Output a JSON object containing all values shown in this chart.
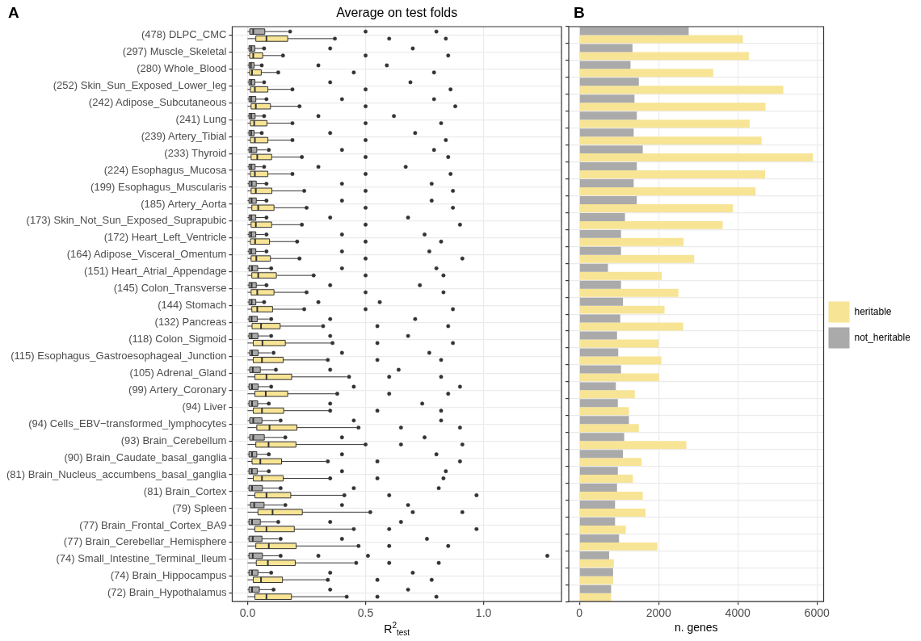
{
  "chart_data": [
    {
      "type": "box",
      "orientation": "horizontal",
      "title": "Average on test folds",
      "xlabel": "R$^{2}$$_{test}$",
      "annotations": [
        "A"
      ],
      "grid": true,
      "xlim": [
        -0.065,
        1.33
      ],
      "xticks": [
        {
          "value": 0,
          "label": "0.0"
        },
        {
          "value": 0.5,
          "label": "0.5"
        },
        {
          "value": 1,
          "label": "1.0"
        }
      ],
      "categories": [
        "(478) DLPC_CMC",
        "(297) Muscle_Skeletal",
        "(280) Whole_Blood",
        "(252) Skin_Sun_Exposed_Lower_leg",
        "(242) Adipose_Subcutaneous",
        "(241) Lung",
        "(239) Artery_Tibial",
        "(233) Thyroid",
        "(224) Esophagus_Mucosa",
        "(199) Esophagus_Muscularis",
        "(185) Artery_Aorta",
        "(173) Skin_Not_Sun_Exposed_Suprapubic",
        "(172) Heart_Left_Ventricle",
        "(164) Adipose_Visceral_Omentum",
        "(151) Heart_Atrial_Appendage",
        "(145) Colon_Transverse",
        "(144) Stomach",
        "(132) Pancreas",
        "(118) Colon_Sigmoid",
        "(115) Esophagus_Gastroesophageal_Junction",
        "(105) Adrenal_Gland",
        "(99) Artery_Coronary",
        "(94) Liver",
        "(94) Cells_EBV−transformed_lymphocytes",
        "(93) Brain_Cerebellum",
        "(90) Brain_Caudate_basal_ganglia",
        "(81) Brain_Nucleus_accumbens_basal_ganglia",
        "(81) Brain_Cortex",
        "(79) Spleen",
        "(77) Brain_Frontal_Cortex_BA9",
        "(77) Brain_Cerebellar_Hemisphere",
        "(74) Small_Intestine_Terminal_Ileum",
        "(74) Brain_Hippocampus",
        "(72) Brain_Hypothalamus"
      ],
      "series": [
        {
          "color": "#f7e495",
          "boxes": [
            {
              "low": 0,
              "q1": 0.035,
              "median": 0.08,
              "q3": 0.17,
              "high": 0.367,
              "outliers": [
                0.37,
                0.6,
                0.84
              ]
            },
            {
              "low": 0,
              "q1": 0.009,
              "median": 0.024,
              "q3": 0.064,
              "high": 0.142,
              "outliers": [
                0.15,
                0.5,
                0.85
              ]
            },
            {
              "low": 0,
              "q1": 0.009,
              "median": 0.019,
              "q3": 0.058,
              "high": 0.125,
              "outliers": [
                0.13,
                0.45,
                0.79
              ]
            },
            {
              "low": 0,
              "q1": 0.012,
              "median": 0.031,
              "q3": 0.086,
              "high": 0.189,
              "outliers": [
                0.19,
                0.5,
                0.86
              ]
            },
            {
              "low": 0,
              "q1": 0.015,
              "median": 0.035,
              "q3": 0.097,
              "high": 0.213,
              "outliers": [
                0.22,
                0.5,
                0.88
              ]
            },
            {
              "low": 0,
              "q1": 0.012,
              "median": 0.028,
              "q3": 0.082,
              "high": 0.183,
              "outliers": [
                0.19,
                0.5,
                0.82
              ]
            },
            {
              "low": 0,
              "q1": 0.012,
              "median": 0.031,
              "q3": 0.086,
              "high": 0.189,
              "outliers": [
                0.19,
                0.5,
                0.84
              ]
            },
            {
              "low": 0,
              "q1": 0.015,
              "median": 0.041,
              "q3": 0.102,
              "high": 0.226,
              "outliers": [
                0.23,
                0.5,
                0.85
              ]
            },
            {
              "low": 0,
              "q1": 0.012,
              "median": 0.031,
              "q3": 0.086,
              "high": 0.187,
              "outliers": [
                0.19,
                0.5,
                0.86
              ]
            },
            {
              "low": 0,
              "q1": 0.015,
              "median": 0.035,
              "q3": 0.103,
              "high": 0.231,
              "outliers": [
                0.24,
                0.5,
                0.87
              ]
            },
            {
              "low": 0,
              "q1": 0.018,
              "median": 0.045,
              "q3": 0.112,
              "high": 0.247,
              "outliers": [
                0.25,
                0.5,
                0.87
              ]
            },
            {
              "low": 0,
              "q1": 0.015,
              "median": 0.035,
              "q3": 0.102,
              "high": 0.222,
              "outliers": [
                0.23,
                0.5,
                0.9
              ]
            },
            {
              "low": 0,
              "q1": 0.012,
              "median": 0.032,
              "q3": 0.093,
              "high": 0.206,
              "outliers": [
                0.21,
                0.5,
                0.82
              ]
            },
            {
              "low": 0,
              "q1": 0.015,
              "median": 0.037,
              "q3": 0.097,
              "high": 0.219,
              "outliers": [
                0.22,
                0.5,
                0.91
              ]
            },
            {
              "low": 0,
              "q1": 0.018,
              "median": 0.045,
              "q3": 0.122,
              "high": 0.276,
              "outliers": [
                0.28,
                0.5,
                0.83
              ]
            },
            {
              "low": 0,
              "q1": 0.015,
              "median": 0.041,
              "q3": 0.112,
              "high": 0.25,
              "outliers": [
                0.25,
                0.5,
                0.83
              ]
            },
            {
              "low": 0,
              "q1": 0.018,
              "median": 0.041,
              "q3": 0.106,
              "high": 0.235,
              "outliers": [
                0.24,
                0.5,
                0.87
              ]
            },
            {
              "low": 0,
              "q1": 0.019,
              "median": 0.057,
              "q3": 0.138,
              "high": 0.312,
              "outliers": [
                0.32,
                0.55,
                0.85
              ]
            },
            {
              "low": 0,
              "q1": 0.024,
              "median": 0.063,
              "q3": 0.16,
              "high": 0.36,
              "outliers": [
                0.36,
                0.55,
                0.87
              ]
            },
            {
              "low": 0,
              "q1": 0.024,
              "median": 0.061,
              "q3": 0.151,
              "high": 0.338,
              "outliers": [
                0.34,
                0.55,
                0.82
              ]
            },
            {
              "low": 0,
              "q1": 0.031,
              "median": 0.08,
              "q3": 0.187,
              "high": 0.421,
              "outliers": [
                0.43,
                0.6,
                0.82
              ]
            },
            {
              "low": 0,
              "q1": 0.031,
              "median": 0.077,
              "q3": 0.17,
              "high": 0.376,
              "outliers": [
                0.38,
                0.6,
                0.85
              ]
            },
            {
              "low": 0,
              "q1": 0.024,
              "median": 0.061,
              "q3": 0.153,
              "high": 0.344,
              "outliers": [
                0.35,
                0.55,
                0.82
              ]
            },
            {
              "low": 0,
              "q1": 0.039,
              "median": 0.093,
              "q3": 0.209,
              "high": 0.463,
              "outliers": [
                0.47,
                0.65,
                0.9
              ]
            },
            {
              "low": 0,
              "q1": 0.035,
              "median": 0.089,
              "q3": 0.205,
              "high": 0.495,
              "outliers": [
                0.5,
                0.65,
                0.91
              ]
            },
            {
              "low": 0,
              "q1": 0.019,
              "median": 0.054,
              "q3": 0.144,
              "high": 0.331,
              "outliers": [
                0.34,
                0.55,
                0.9
              ]
            },
            {
              "low": 0,
              "q1": 0.024,
              "median": 0.061,
              "q3": 0.151,
              "high": 0.344,
              "outliers": [
                0.35,
                0.55,
                0.83
              ]
            },
            {
              "low": 0,
              "q1": 0.031,
              "median": 0.08,
              "q3": 0.183,
              "high": 0.406,
              "outliers": [
                0.41,
                0.6,
                0.97
              ]
            },
            {
              "low": 0,
              "q1": 0.044,
              "median": 0.106,
              "q3": 0.232,
              "high": 0.512,
              "outliers": [
                0.52,
                0.7,
                0.91
              ]
            },
            {
              "low": 0,
              "q1": 0.031,
              "median": 0.08,
              "q3": 0.198,
              "high": 0.447,
              "outliers": [
                0.45,
                0.6,
                0.97
              ]
            },
            {
              "low": 0,
              "q1": 0.035,
              "median": 0.09,
              "q3": 0.206,
              "high": 0.463,
              "outliers": [
                0.47,
                0.6,
                0.85
              ]
            },
            {
              "low": 0,
              "q1": 0.037,
              "median": 0.086,
              "q3": 0.202,
              "high": 0.45,
              "outliers": [
                0.46,
                0.6,
                0.81
              ]
            },
            {
              "low": 0,
              "q1": 0.024,
              "median": 0.057,
              "q3": 0.148,
              "high": 0.335,
              "outliers": [
                0.34,
                0.55,
                0.78
              ]
            },
            {
              "low": 0,
              "q1": 0.031,
              "median": 0.08,
              "q3": 0.186,
              "high": 0.416,
              "outliers": [
                0.42,
                0.55,
                0.8
              ]
            }
          ]
        },
        {
          "color": "#aaaaaa",
          "boxes": [
            {
              "low": 0,
              "q1": 0.009,
              "median": 0.024,
              "q3": 0.073,
              "high": 0.17,
              "outliers": [
                0.18,
                0.5,
                0.8
              ]
            },
            {
              "low": 0,
              "q1": 0.006,
              "median": 0.015,
              "q3": 0.031,
              "high": 0.064,
              "outliers": [
                0.07,
                0.35,
                0.7
              ]
            },
            {
              "low": 0,
              "q1": 0.006,
              "median": 0.014,
              "q3": 0.028,
              "high": 0.054,
              "outliers": [
                0.06,
                0.3,
                0.59
              ]
            },
            {
              "low": 0,
              "q1": 0.006,
              "median": 0.015,
              "q3": 0.031,
              "high": 0.061,
              "outliers": [
                0.07,
                0.35,
                0.69
              ]
            },
            {
              "low": 0,
              "q1": 0.006,
              "median": 0.015,
              "q3": 0.035,
              "high": 0.077,
              "outliers": [
                0.08,
                0.4,
                0.79
              ]
            },
            {
              "low": 0,
              "q1": 0.006,
              "median": 0.015,
              "q3": 0.032,
              "high": 0.067,
              "outliers": [
                0.07,
                0.3,
                0.62
              ]
            },
            {
              "low": 0,
              "q1": 0.006,
              "median": 0.015,
              "q3": 0.028,
              "high": 0.058,
              "outliers": [
                0.06,
                0.35,
                0.71
              ]
            },
            {
              "low": 0,
              "q1": 0.006,
              "median": 0.015,
              "q3": 0.039,
              "high": 0.08,
              "outliers": [
                0.09,
                0.4,
                0.79
              ]
            },
            {
              "low": 0,
              "q1": 0.006,
              "median": 0.015,
              "q3": 0.032,
              "high": 0.061,
              "outliers": [
                0.07,
                0.3,
                0.67
              ]
            },
            {
              "low": 0,
              "q1": 0.006,
              "median": 0.017,
              "q3": 0.037,
              "high": 0.077,
              "outliers": [
                0.08,
                0.4,
                0.78
              ]
            },
            {
              "low": 0,
              "q1": 0.006,
              "median": 0.017,
              "q3": 0.037,
              "high": 0.077,
              "outliers": [
                0.08,
                0.4,
                0.78
              ]
            },
            {
              "low": 0,
              "q1": 0.006,
              "median": 0.015,
              "q3": 0.035,
              "high": 0.073,
              "outliers": [
                0.08,
                0.35,
                0.68
              ]
            },
            {
              "low": 0,
              "q1": 0.006,
              "median": 0.015,
              "q3": 0.035,
              "high": 0.071,
              "outliers": [
                0.08,
                0.4,
                0.75
              ]
            },
            {
              "low": 0,
              "q1": 0.006,
              "median": 0.015,
              "q3": 0.035,
              "high": 0.071,
              "outliers": [
                0.08,
                0.4,
                0.77
              ]
            },
            {
              "low": 0,
              "q1": 0.006,
              "median": 0.019,
              "q3": 0.043,
              "high": 0.095,
              "outliers": [
                0.1,
                0.4,
                0.8
              ]
            },
            {
              "low": 0,
              "q1": 0.006,
              "median": 0.017,
              "q3": 0.037,
              "high": 0.073,
              "outliers": [
                0.08,
                0.35,
                0.73
              ]
            },
            {
              "low": 0,
              "q1": 0.006,
              "median": 0.017,
              "q3": 0.035,
              "high": 0.067,
              "outliers": [
                0.07,
                0.3,
                0.56
              ]
            },
            {
              "low": 0,
              "q1": 0.006,
              "median": 0.017,
              "q3": 0.041,
              "high": 0.09,
              "outliers": [
                0.1,
                0.35,
                0.71
              ]
            },
            {
              "low": 0,
              "q1": 0.006,
              "median": 0.017,
              "q3": 0.044,
              "high": 0.093,
              "outliers": [
                0.1,
                0.35,
                0.68
              ]
            },
            {
              "low": 0,
              "q1": 0.009,
              "median": 0.019,
              "q3": 0.045,
              "high": 0.099,
              "outliers": [
                0.11,
                0.4,
                0.77
              ]
            },
            {
              "low": 0,
              "q1": 0.009,
              "median": 0.022,
              "q3": 0.054,
              "high": 0.112,
              "outliers": [
                0.12,
                0.35,
                0.64
              ]
            },
            {
              "low": 0,
              "q1": 0.006,
              "median": 0.019,
              "q3": 0.045,
              "high": 0.093,
              "outliers": [
                0.1,
                0.45,
                0.9
              ]
            },
            {
              "low": 0,
              "q1": 0.006,
              "median": 0.019,
              "q3": 0.043,
              "high": 0.086,
              "outliers": [
                0.09,
                0.35,
                0.74
              ]
            },
            {
              "low": 0,
              "q1": 0.009,
              "median": 0.024,
              "q3": 0.061,
              "high": 0.131,
              "outliers": [
                0.14,
                0.45,
                0.82
              ]
            },
            {
              "low": 0,
              "q1": 0.009,
              "median": 0.024,
              "q3": 0.071,
              "high": 0.157,
              "outliers": [
                0.16,
                0.4,
                0.75
              ]
            },
            {
              "low": 0,
              "q1": 0.006,
              "median": 0.019,
              "q3": 0.039,
              "high": 0.086,
              "outliers": [
                0.09,
                0.4,
                0.8
              ]
            },
            {
              "low": 0,
              "q1": 0.006,
              "median": 0.018,
              "q3": 0.041,
              "high": 0.086,
              "outliers": [
                0.09,
                0.4,
                0.84
              ]
            },
            {
              "low": 0,
              "q1": 0.006,
              "median": 0.019,
              "q3": 0.063,
              "high": 0.138,
              "outliers": [
                0.14,
                0.45,
                0.81
              ]
            },
            {
              "low": 0,
              "q1": 0.012,
              "median": 0.028,
              "q3": 0.07,
              "high": 0.151,
              "outliers": [
                0.16,
                0.4,
                0.68
              ]
            },
            {
              "low": 0,
              "q1": 0.006,
              "median": 0.019,
              "q3": 0.054,
              "high": 0.122,
              "outliers": [
                0.13,
                0.35,
                0.65
              ]
            },
            {
              "low": 0,
              "q1": 0.006,
              "median": 0.022,
              "q3": 0.061,
              "high": 0.131,
              "outliers": [
                0.14,
                0.4,
                0.76
              ]
            },
            {
              "low": 0,
              "q1": 0.006,
              "median": 0.022,
              "q3": 0.063,
              "high": 0.138,
              "outliers": [
                0.14,
                0.3,
                0.51,
                1.27
              ]
            },
            {
              "low": 0,
              "q1": 0.006,
              "median": 0.019,
              "q3": 0.044,
              "high": 0.097,
              "outliers": [
                0.1,
                0.35,
                0.7
              ]
            },
            {
              "low": 0,
              "q1": 0.006,
              "median": 0.019,
              "q3": 0.05,
              "high": 0.106,
              "outliers": [
                0.11,
                0.35,
                0.68
              ]
            }
          ]
        }
      ]
    },
    {
      "type": "bar",
      "orientation": "horizontal",
      "xlabel": "n. genes",
      "annotations": [
        "B"
      ],
      "grid": true,
      "legend": "right",
      "tick_labels": "x",
      "xlim": [
        -270,
        6170
      ],
      "xticks": [
        0,
        2000,
        4000,
        6000
      ],
      "categories": [
        null,
        null,
        null,
        null,
        null,
        null,
        null,
        null,
        null,
        null,
        null,
        null,
        null,
        null,
        null,
        null,
        null,
        null,
        null,
        null,
        null,
        null,
        null,
        null,
        null,
        null,
        null,
        null,
        null,
        null,
        null,
        null,
        null,
        null
      ],
      "series": [
        {
          "name": "heritable",
          "color": "#f7e495",
          "values": [
            4130,
            4280,
            3380,
            5150,
            4700,
            4300,
            4600,
            5900,
            4690,
            4450,
            3880,
            3620,
            2630,
            2900,
            2080,
            2500,
            2150,
            2620,
            2000,
            2070,
            2010,
            1400,
            1250,
            1500,
            2700,
            1570,
            1350,
            1600,
            1670,
            1170,
            1970,
            870,
            850,
            800
          ]
        },
        {
          "name": "not_heritable",
          "color": "#aaaaaa",
          "values": [
            2760,
            1340,
            1290,
            1500,
            1390,
            1450,
            1370,
            1600,
            1450,
            1370,
            1450,
            1150,
            1050,
            1050,
            720,
            1050,
            1100,
            1030,
            950,
            980,
            1050,
            920,
            970,
            1250,
            1130,
            1100,
            970,
            950,
            900,
            900,
            1000,
            750,
            850,
            800
          ]
        }
      ]
    }
  ]
}
